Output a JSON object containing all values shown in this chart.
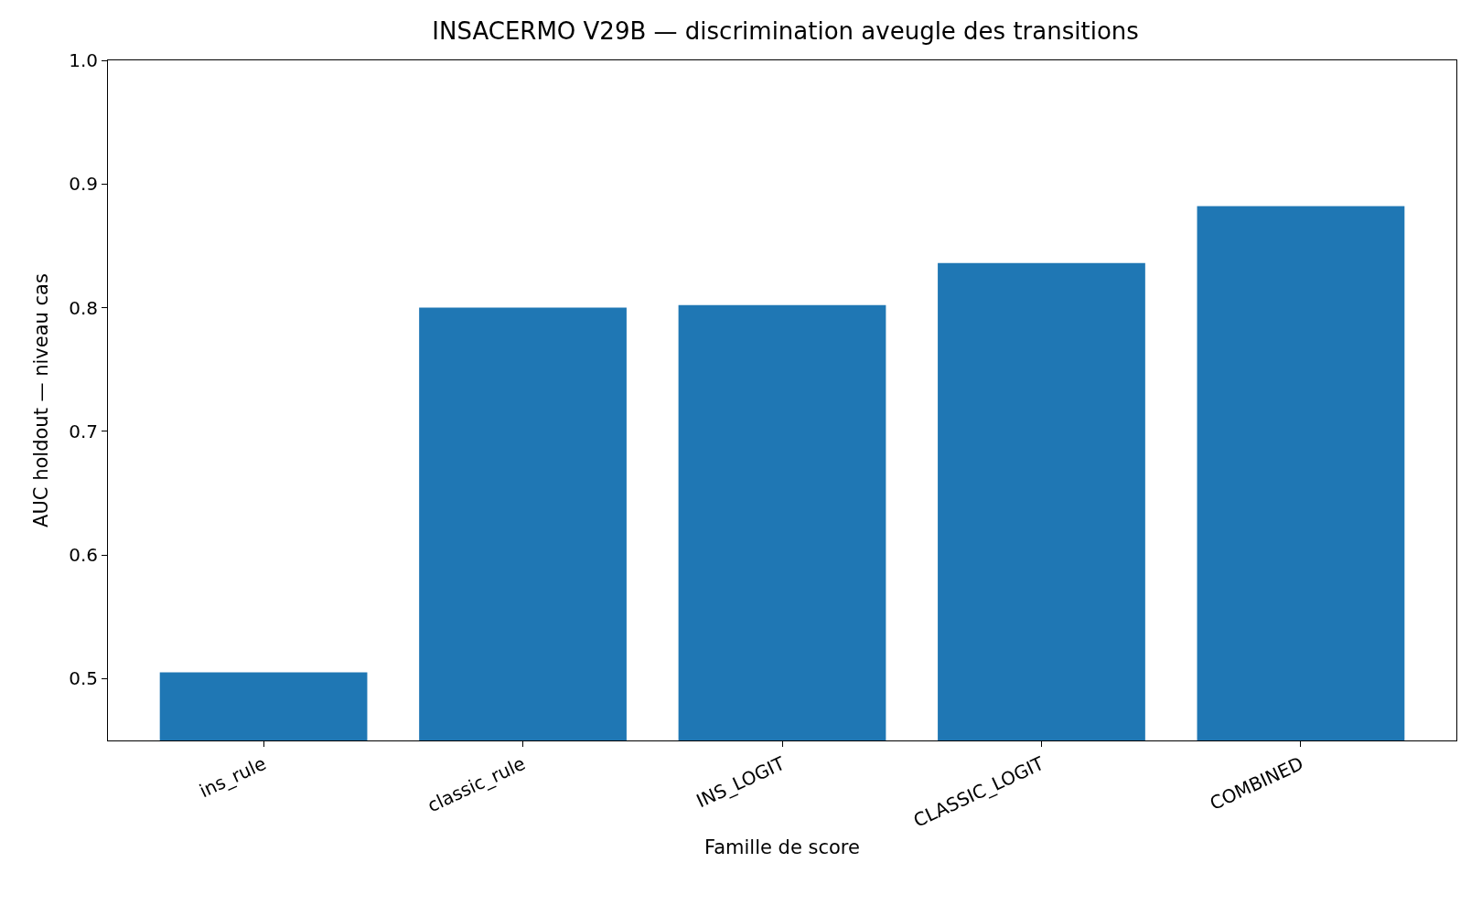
{
  "chart_data": {
    "type": "bar",
    "title": "INSACERMO V29B — discrimination aveugle des transitions",
    "xlabel": "Famille de score",
    "ylabel": "AUC holdout — niveau cas",
    "categories": [
      "ins_rule",
      "classic_rule",
      "INS_LOGIT",
      "CLASSIC_LOGIT",
      "COMBINED"
    ],
    "values": [
      0.505,
      0.8,
      0.802,
      0.836,
      0.882
    ],
    "color": "#1f77b4",
    "ylim": [
      0.45,
      1.0
    ],
    "yticks": [
      0.5,
      0.6,
      0.7,
      0.8,
      0.9,
      {
        "value": 1.0,
        "label": "1.0"
      }
    ],
    "grid": false
  }
}
